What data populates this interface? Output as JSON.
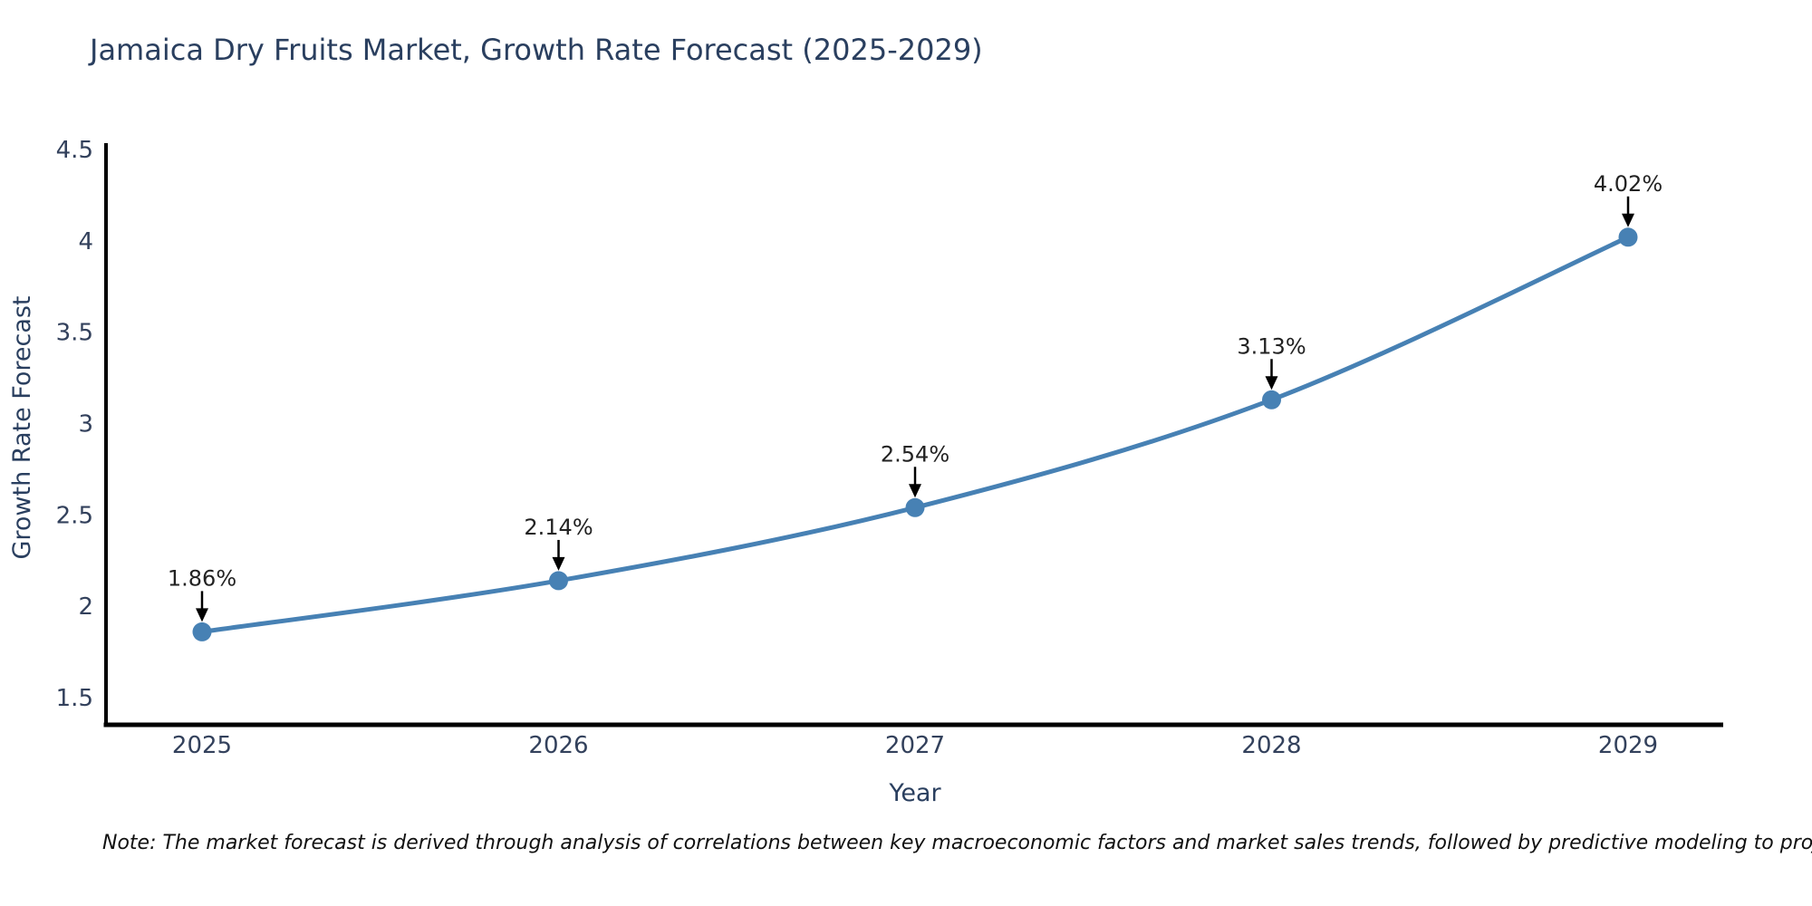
{
  "footnote": "Note: The market forecast is derived through analysis of correlations between key macroeconomic factors and market sales trends, followed by predictive modeling to project future sales",
  "chart_data": {
    "type": "line",
    "title": "Jamaica Dry Fruits Market, Growth Rate Forecast (2025-2029)",
    "xlabel": "Year",
    "ylabel": "Growth Rate Forecast",
    "categories": [
      "2025",
      "2026",
      "2027",
      "2028",
      "2029"
    ],
    "series": [
      {
        "name": "Growth Rate Forecast",
        "values": [
          1.86,
          2.14,
          2.54,
          3.13,
          4.02
        ],
        "point_labels": [
          "1.86%",
          "2.14%",
          "2.54%",
          "3.13%",
          "4.02%"
        ]
      }
    ],
    "ylim": [
      1.5,
      4.5
    ],
    "y_ticks": [
      "1.5",
      "2",
      "2.5",
      "3",
      "3.5",
      "4",
      "4.5"
    ],
    "y_tick_values": [
      1.5,
      2.0,
      2.5,
      3.0,
      3.5,
      4.0,
      4.5
    ],
    "grid": false,
    "legend_position": "none",
    "marker_style": "circle",
    "annotation_style": "down-arrow",
    "colors": {
      "line": "#4781b4",
      "marker": "#4781b4",
      "annotation_arrow": "#000000",
      "annotation_text": "#222222",
      "axis_spine": "#000000",
      "title_text": "#2a3f5f",
      "tick_text": "#33415c",
      "footnote_text": "#111111",
      "background": "#ffffff"
    }
  }
}
